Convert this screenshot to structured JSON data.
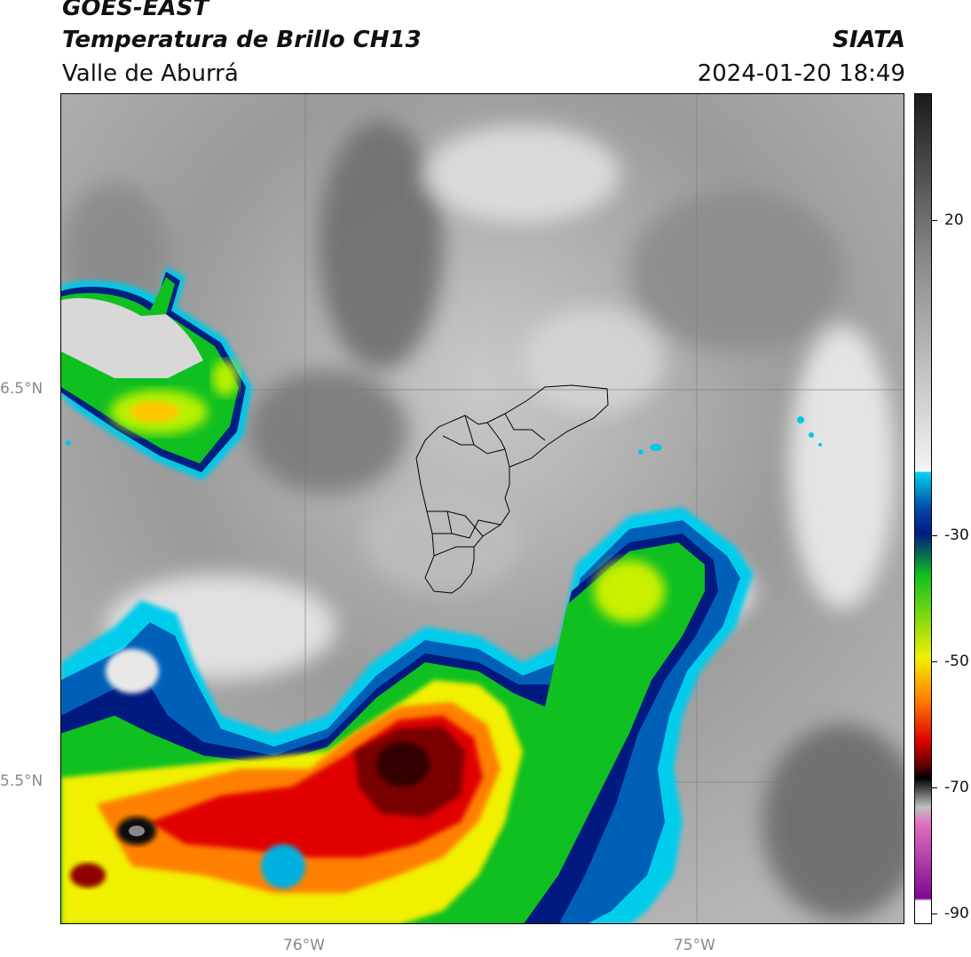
{
  "header": {
    "satellite": "GOES-EAST",
    "product": "Temperatura de Brillo CH13",
    "region": "Valle de Aburrá",
    "agency": "SIATA",
    "datetime": "2024-01-20 18:49"
  },
  "map": {
    "latitude_labels": [
      "6.5°N",
      "5.5°N"
    ],
    "longitude_labels": [
      "76°W",
      "75°W"
    ],
    "gridlines": true,
    "overlay": "municipal boundaries of Valle de Aburrá"
  },
  "colorbar": {
    "tick_labels": [
      "20",
      "-30",
      "-50",
      "-70",
      "-90"
    ],
    "colors": {
      "warm": "#1a1a1a",
      "mid_gray": "#8a8a8a",
      "light": "#f2f2f2",
      "cyan": "#00d4ee",
      "blue": "#0048a8",
      "navy": "#001a80",
      "green": "#10c020",
      "yellow": "#f0f000",
      "orange": "#ff8000",
      "red": "#e00000",
      "dark_red": "#600000",
      "black": "#000000",
      "pink": "#e070c0",
      "purple": "#7a0a90"
    }
  }
}
